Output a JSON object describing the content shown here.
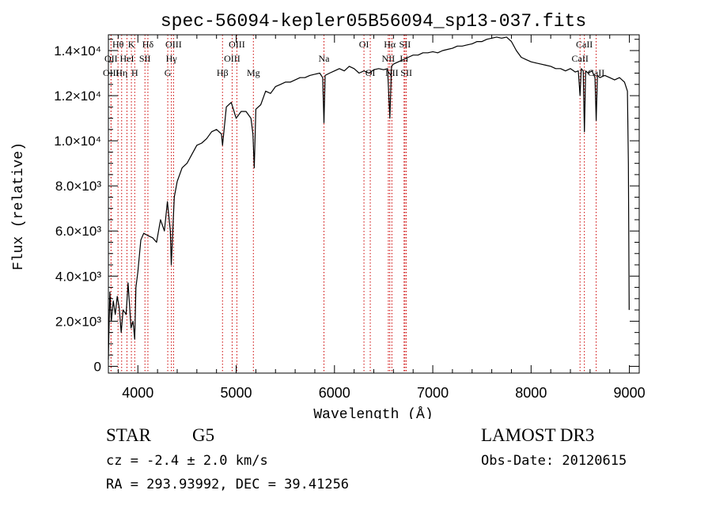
{
  "chart_data": {
    "type": "line",
    "title": "spec-56094-kepler05B56094_sp13-037.fits",
    "xlabel": "Wavelength (Å)",
    "ylabel": "Flux (relative)",
    "xlim": [
      3700,
      9100
    ],
    "ylim": [
      -300,
      14700
    ],
    "x_ticks": [
      {
        "value": 4000,
        "label": "4000"
      },
      {
        "value": 5000,
        "label": "5000"
      },
      {
        "value": 6000,
        "label": "6000"
      },
      {
        "value": 7000,
        "label": "7000"
      },
      {
        "value": 8000,
        "label": "8000"
      },
      {
        "value": 9000,
        "label": "9000"
      }
    ],
    "y_ticks": [
      {
        "value": 0,
        "label": "0"
      },
      {
        "value": 2000,
        "label": "2.0×10³"
      },
      {
        "value": 4000,
        "label": "4.0×10³"
      },
      {
        "value": 6000,
        "label": "6.0×10³"
      },
      {
        "value": 8000,
        "label": "8.0×10³"
      },
      {
        "value": 10000,
        "label": "1.0×10⁴"
      },
      {
        "value": 12000,
        "label": "1.2×10⁴"
      },
      {
        "value": 14000,
        "label": "1.4×10⁴"
      }
    ],
    "series": [
      {
        "name": "flux",
        "color": "#000000",
        "points": [
          [
            3700,
            300
          ],
          [
            3705,
            1400
          ],
          [
            3715,
            3300
          ],
          [
            3730,
            2000
          ],
          [
            3750,
            2900
          ],
          [
            3770,
            2300
          ],
          [
            3790,
            3100
          ],
          [
            3810,
            2600
          ],
          [
            3830,
            1500
          ],
          [
            3850,
            2500
          ],
          [
            3880,
            2300
          ],
          [
            3900,
            3700
          ],
          [
            3930,
            1700
          ],
          [
            3950,
            2000
          ],
          [
            3968,
            1200
          ],
          [
            3980,
            3500
          ],
          [
            4000,
            4200
          ],
          [
            4030,
            5600
          ],
          [
            4060,
            5900
          ],
          [
            4100,
            5800
          ],
          [
            4150,
            5700
          ],
          [
            4190,
            5500
          ],
          [
            4230,
            6500
          ],
          [
            4270,
            6000
          ],
          [
            4300,
            7300
          ],
          [
            4330,
            6000
          ],
          [
            4340,
            4500
          ],
          [
            4370,
            7500
          ],
          [
            4400,
            8200
          ],
          [
            4450,
            8800
          ],
          [
            4500,
            9000
          ],
          [
            4550,
            9400
          ],
          [
            4600,
            9800
          ],
          [
            4650,
            9900
          ],
          [
            4700,
            10100
          ],
          [
            4750,
            10400
          ],
          [
            4800,
            10500
          ],
          [
            4850,
            10300
          ],
          [
            4861,
            9800
          ],
          [
            4900,
            11500
          ],
          [
            4950,
            11700
          ],
          [
            5000,
            11000
          ],
          [
            5050,
            11300
          ],
          [
            5100,
            11300
          ],
          [
            5150,
            11000
          ],
          [
            5170,
            10300
          ],
          [
            5184,
            8800
          ],
          [
            5200,
            11400
          ],
          [
            5250,
            11600
          ],
          [
            5300,
            12200
          ],
          [
            5350,
            12100
          ],
          [
            5400,
            12400
          ],
          [
            5450,
            12500
          ],
          [
            5500,
            12600
          ],
          [
            5550,
            12600
          ],
          [
            5600,
            12700
          ],
          [
            5650,
            12800
          ],
          [
            5700,
            12800
          ],
          [
            5750,
            12900
          ],
          [
            5800,
            12950
          ],
          [
            5850,
            13000
          ],
          [
            5880,
            12800
          ],
          [
            5893,
            10800
          ],
          [
            5905,
            12900
          ],
          [
            5950,
            13000
          ],
          [
            6000,
            13100
          ],
          [
            6050,
            13200
          ],
          [
            6100,
            13100
          ],
          [
            6150,
            13300
          ],
          [
            6200,
            13200
          ],
          [
            6250,
            13000
          ],
          [
            6300,
            13100
          ],
          [
            6350,
            13000
          ],
          [
            6400,
            13150
          ],
          [
            6450,
            13200
          ],
          [
            6500,
            13150
          ],
          [
            6540,
            13200
          ],
          [
            6563,
            11000
          ],
          [
            6580,
            13300
          ],
          [
            6600,
            13400
          ],
          [
            6650,
            13500
          ],
          [
            6700,
            13600
          ],
          [
            6750,
            13700
          ],
          [
            6800,
            13800
          ],
          [
            6850,
            13800
          ],
          [
            6900,
            13900
          ],
          [
            6950,
            13900
          ],
          [
            7000,
            13950
          ],
          [
            7050,
            13900
          ],
          [
            7100,
            14000
          ],
          [
            7150,
            14050
          ],
          [
            7200,
            14100
          ],
          [
            7250,
            14200
          ],
          [
            7300,
            14200
          ],
          [
            7350,
            14250
          ],
          [
            7400,
            14300
          ],
          [
            7450,
            14400
          ],
          [
            7500,
            14400
          ],
          [
            7550,
            14500
          ],
          [
            7600,
            14550
          ],
          [
            7650,
            14600
          ],
          [
            7700,
            14550
          ],
          [
            7750,
            14600
          ],
          [
            7800,
            14400
          ],
          [
            7850,
            14000
          ],
          [
            7900,
            13700
          ],
          [
            7950,
            13600
          ],
          [
            8000,
            13500
          ],
          [
            8050,
            13450
          ],
          [
            8100,
            13400
          ],
          [
            8150,
            13350
          ],
          [
            8200,
            13300
          ],
          [
            8250,
            13200
          ],
          [
            8300,
            13200
          ],
          [
            8350,
            13100
          ],
          [
            8400,
            13200
          ],
          [
            8450,
            13050
          ],
          [
            8480,
            13100
          ],
          [
            8498,
            12000
          ],
          [
            8510,
            13200
          ],
          [
            8530,
            13100
          ],
          [
            8542,
            10400
          ],
          [
            8555,
            13100
          ],
          [
            8580,
            13000
          ],
          [
            8620,
            13100
          ],
          [
            8650,
            12800
          ],
          [
            8662,
            10900
          ],
          [
            8675,
            12900
          ],
          [
            8700,
            12800
          ],
          [
            8750,
            12900
          ],
          [
            8800,
            12800
          ],
          [
            8850,
            12700
          ],
          [
            8900,
            12800
          ],
          [
            8950,
            12600
          ],
          [
            8980,
            12200
          ],
          [
            8990,
            9000
          ],
          [
            8998,
            2500
          ]
        ]
      }
    ],
    "lines": [
      {
        "label": "Hθ",
        "x": 3798,
        "row": 0
      },
      {
        "label": "OII",
        "x": 3727,
        "row": 1
      },
      {
        "label": "OIII",
        "x": 3727,
        "row": 2
      },
      {
        "label": "K",
        "x": 3934,
        "row": 0
      },
      {
        "label": "HeI",
        "x": 3889,
        "row": 1
      },
      {
        "label": "Hη",
        "x": 3835,
        "row": 2
      },
      {
        "label": "Hδ",
        "x": 4102,
        "row": 0
      },
      {
        "label": "SII",
        "x": 4072,
        "row": 1
      },
      {
        "label": "H",
        "x": 3968,
        "row": 2
      },
      {
        "label": "OIII",
        "x": 4363,
        "row": 0
      },
      {
        "label": "Hγ",
        "x": 4341,
        "row": 1
      },
      {
        "label": "G",
        "x": 4304,
        "row": 2
      },
      {
        "label": "OIII",
        "x": 5007,
        "row": 0
      },
      {
        "label": "OIII",
        "x": 4959,
        "row": 1
      },
      {
        "label": "Hβ",
        "x": 4861,
        "row": 2
      },
      {
        "label": "Mg",
        "x": 5175,
        "row": 2
      },
      {
        "label": "Na",
        "x": 5893,
        "row": 1
      },
      {
        "label": "OI",
        "x": 6300,
        "row": 0
      },
      {
        "label": "OI",
        "x": 6364,
        "row": 2
      },
      {
        "label": "Hα",
        "x": 6563,
        "row": 0
      },
      {
        "label": "NII",
        "x": 6548,
        "row": 1
      },
      {
        "label": "NII",
        "x": 6584,
        "row": 2
      },
      {
        "label": "SII",
        "x": 6717,
        "row": 0
      },
      {
        "label": "Li",
        "x": 6708,
        "row": 1
      },
      {
        "label": "SII",
        "x": 6731,
        "row": 2
      },
      {
        "label": "CaII",
        "x": 8542,
        "row": 0
      },
      {
        "label": "CaII",
        "x": 8498,
        "row": 1
      },
      {
        "label": "CaII",
        "x": 8662,
        "row": 2
      }
    ]
  },
  "info": {
    "class": "STAR",
    "subclass": "G5",
    "survey": "LAMOST DR3",
    "cz": "cz = -2.4 ± 2.0 km/s",
    "obs_date": "Obs-Date: 20120615",
    "radec": "RA = 293.93992, DEC =  39.41256"
  }
}
